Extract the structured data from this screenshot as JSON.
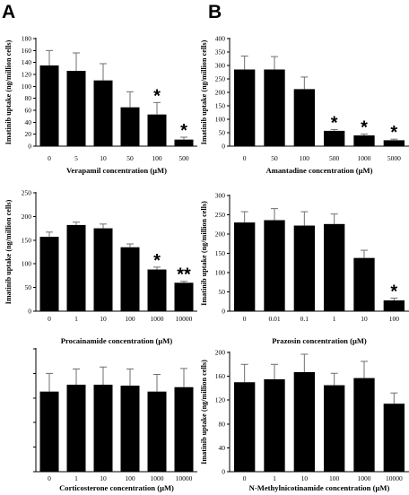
{
  "panel_labels": [
    "A",
    "B"
  ],
  "chart_data": [
    {
      "type": "bar",
      "categories": [
        "0",
        "5",
        "10",
        "50",
        "100",
        "500"
      ],
      "series": [
        {
          "values": [
            135,
            126,
            110,
            65,
            53,
            11
          ],
          "errors": [
            25,
            30,
            28,
            26,
            20,
            4
          ]
        }
      ],
      "significance": [
        "",
        "",
        "",
        "",
        "*",
        "*"
      ],
      "yticks": [
        "0",
        "20",
        "40",
        "60",
        "80",
        "100",
        "120",
        "140",
        "160",
        "180"
      ],
      "ylim": [
        0,
        180
      ],
      "xlabel": "Verapamil concentration (μM)",
      "ylabel": "Imatinib uptake (ng/million cells)"
    },
    {
      "type": "bar",
      "categories": [
        "0",
        "50",
        "100",
        "500",
        "1000",
        "5000"
      ],
      "series": [
        {
          "values": [
            285,
            285,
            212,
            57,
            40,
            22
          ],
          "errors": [
            50,
            48,
            45,
            5,
            5,
            4
          ]
        }
      ],
      "significance": [
        "",
        "",
        "",
        "*",
        "*",
        "*"
      ],
      "yticks": [
        "0",
        "50",
        "100",
        "150",
        "200",
        "250",
        "300",
        "350",
        "400"
      ],
      "ylim": [
        0,
        400
      ],
      "xlabel": "Amantadine concentration (μM)",
      "ylabel": "Imatinib uptake (ng/million cells)"
    },
    {
      "type": "bar",
      "categories": [
        "0",
        "1",
        "10",
        "100",
        "1000",
        "10000"
      ],
      "series": [
        {
          "values": [
            157,
            182,
            175,
            135,
            88,
            60
          ],
          "errors": [
            10,
            6,
            9,
            7,
            5,
            3
          ]
        }
      ],
      "significance": [
        "",
        "",
        "",
        "",
        "*",
        "**"
      ],
      "yticks": [
        "0",
        "50",
        "100",
        "150",
        "200",
        "250"
      ],
      "ylim": [
        0,
        250
      ],
      "xlabel": "Procainamide concentration (μM)",
      "ylabel": "Imatinib uptake (ng/million cells)"
    },
    {
      "type": "bar",
      "categories": [
        "0",
        "0.01",
        "0.1",
        "1",
        "10",
        "100"
      ],
      "series": [
        {
          "values": [
            230,
            236,
            222,
            226,
            138,
            28
          ],
          "errors": [
            28,
            30,
            36,
            26,
            20,
            6
          ]
        }
      ],
      "significance": [
        "",
        "",
        "",
        "",
        "",
        "*"
      ],
      "yticks": [
        "0",
        "50",
        "100",
        "150",
        "200",
        "250",
        "300"
      ],
      "ylim": [
        0,
        300
      ],
      "xlabel": "Prazosin concentration (μM)",
      "ylabel": "Imatinib uptake (ng/million cells)"
    },
    {
      "type": "bar",
      "categories": [
        "0",
        "1",
        "10",
        "100",
        "1000",
        "10000"
      ],
      "series": [
        {
          "values": [
            163,
            177,
            177,
            175,
            163,
            172
          ],
          "errors": [
            37,
            32,
            36,
            34,
            35,
            38
          ]
        }
      ],
      "significance": [
        "",
        "",
        "",
        "",
        "",
        ""
      ],
      "yticks": [
        "",
        "",
        "",
        "",
        "",
        ""
      ],
      "ylim": [
        0,
        250
      ],
      "xlabel": "Corticosterone concentration (μM)",
      "ylabel": ""
    },
    {
      "type": "bar",
      "categories": [
        "0",
        "1",
        "10",
        "100",
        "1000",
        "10000"
      ],
      "series": [
        {
          "values": [
            150,
            155,
            167,
            145,
            157,
            114
          ],
          "errors": [
            30,
            25,
            30,
            20,
            28,
            18
          ]
        }
      ],
      "significance": [
        "",
        "",
        "",
        "",
        "",
        ""
      ],
      "yticks": [
        "0",
        "40",
        "80",
        "120",
        "160",
        "200"
      ],
      "ylim": [
        0,
        200
      ],
      "xlabel": "N-Methylnicotinamide concentration (μM)",
      "ylabel": "Imatinib uptake (ng/million cells)"
    }
  ]
}
